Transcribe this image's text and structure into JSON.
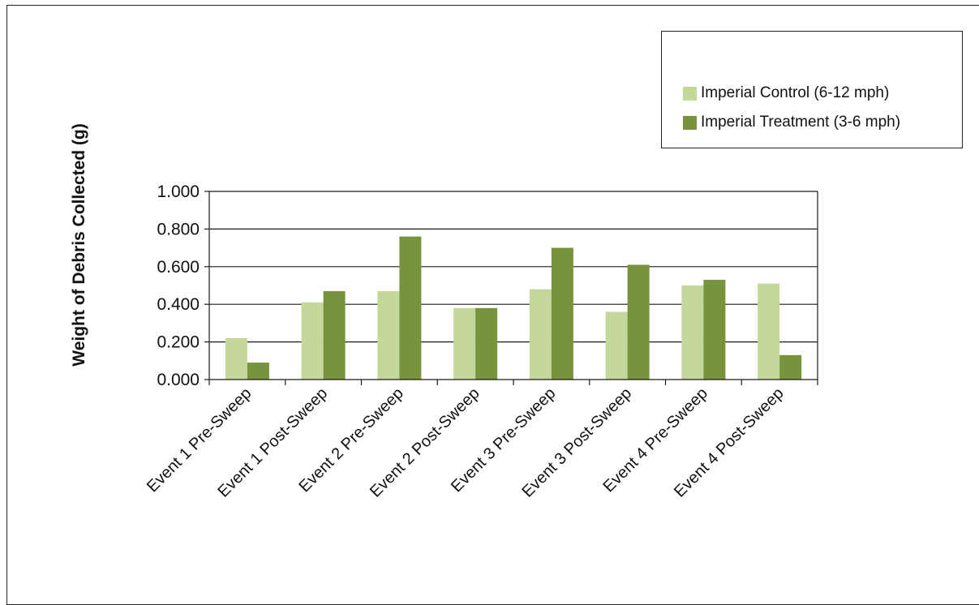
{
  "chart_data": {
    "type": "bar",
    "title": "",
    "xlabel": "",
    "ylabel": "Weight of Debris Collected (g)",
    "ylim": [
      0,
      1.0
    ],
    "yticks": [
      "0.000",
      "0.200",
      "0.400",
      "0.600",
      "0.800",
      "1.000"
    ],
    "ytick_values": [
      0,
      0.2,
      0.4,
      0.6,
      0.8,
      1.0
    ],
    "grid": true,
    "legend_position": "top-right",
    "categories": [
      "Event 1 Pre-Sweep",
      "Event 1 Post-Sweep",
      "Event 2 Pre-Sweep",
      "Event 2 Post-Sweep",
      "Event 3 Pre-Sweep",
      "Event 3 Post-Sweep",
      "Event 4 Pre-Sweep",
      "Event 4 Post-Sweep"
    ],
    "series": [
      {
        "name": "Imperial Control (6-12 mph)",
        "color": "#c4d89b",
        "values": [
          0.22,
          0.41,
          0.47,
          0.38,
          0.48,
          0.36,
          0.5,
          0.51
        ]
      },
      {
        "name": "Imperial Treatment (3-6 mph)",
        "color": "#77933c",
        "values": [
          0.09,
          0.47,
          0.76,
          0.38,
          0.7,
          0.61,
          0.53,
          0.13
        ]
      }
    ]
  }
}
